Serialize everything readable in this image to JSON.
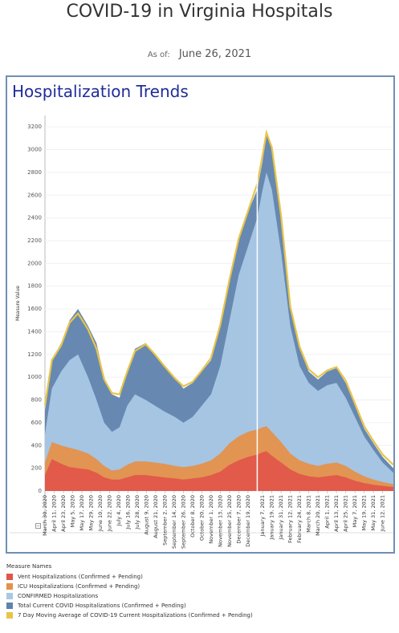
{
  "header": {
    "title": "COVID-19 in Virginia Hospitals",
    "as_of_label": "As of:",
    "as_of_date": "June 26, 2021"
  },
  "panel": {
    "title": "Hospitalization Trends"
  },
  "legend": {
    "title": "Measure Names",
    "items": [
      {
        "label": "Vent Hospitalizations (Confirmed + Pending)",
        "color": "#e0564a"
      },
      {
        "label": "ICU Hospitalizations (Confirmed + Pending)",
        "color": "#e5914a"
      },
      {
        "label": "CONFIRMED Hospitalizations",
        "color": "#a9c8e6"
      },
      {
        "label": "Total Current COVID Hospitalizations (Confirmed + Pending)",
        "color": "#5f83ad"
      },
      {
        "label": "7 Day Moving Average of COVID-19 Current Hospitalizations (Confirmed + Pending)",
        "color": "#e8c54a"
      }
    ]
  },
  "chart_data": {
    "type": "area",
    "ylabel": "Measure Value",
    "xlabel": "",
    "ylim": [
      0,
      3300
    ],
    "yticks": [
      0,
      200,
      400,
      600,
      800,
      1000,
      1200,
      1400,
      1600,
      1800,
      2000,
      2200,
      2400,
      2600,
      2800,
      3000,
      3200
    ],
    "x_start": "2020-03-30",
    "x_end": "2021-06-26",
    "x_ticks": [
      "March 30, 2020",
      "April 11, 2020",
      "April 23, 2020",
      "May 5, 2020",
      "May 17, 2020",
      "May 29, 2020",
      "June 10, 2020",
      "June 22, 2020",
      "July 4, 2020",
      "July 16, 2020",
      "July 28, 2020",
      "August 9, 2020",
      "August 21, 2020",
      "September 2, 2020",
      "September 14, 2020",
      "September 26, 2020",
      "October 8, 2020",
      "October 20, 2020",
      "November 1, 2020",
      "November 13, 2020",
      "November 25, 2020",
      "December 7, 2020",
      "December 19, 2020",
      "January 7, 2021",
      "January 19, 2021",
      "January 31, 2021",
      "February 12, 2021",
      "February 24, 2021",
      "March 8, 2021",
      "March 20, 2021",
      "April 1, 2021",
      "April 13, 2021",
      "April 25, 2021",
      "May 7, 2021",
      "May 19, 2021",
      "May 31, 2021",
      "June 12, 2021"
    ],
    "reference_line_date": "2020-12-31",
    "series": [
      {
        "name": "Total Current COVID Hospitalizations (Confirmed + Pending)",
        "points": [
          [
            "2020-03-30",
            700
          ],
          [
            "2020-04-08",
            1150
          ],
          [
            "2020-04-20",
            1300
          ],
          [
            "2020-05-01",
            1500
          ],
          [
            "2020-05-12",
            1600
          ],
          [
            "2020-05-25",
            1450
          ],
          [
            "2020-06-05",
            1300
          ],
          [
            "2020-06-15",
            1000
          ],
          [
            "2020-06-25",
            850
          ],
          [
            "2020-07-05",
            820
          ],
          [
            "2020-07-15",
            1050
          ],
          [
            "2020-07-25",
            1250
          ],
          [
            "2020-08-08",
            1300
          ],
          [
            "2020-08-20",
            1200
          ],
          [
            "2020-09-01",
            1100
          ],
          [
            "2020-09-15",
            1000
          ],
          [
            "2020-09-26",
            900
          ],
          [
            "2020-10-08",
            950
          ],
          [
            "2020-10-20",
            1050
          ],
          [
            "2020-11-01",
            1150
          ],
          [
            "2020-11-13",
            1450
          ],
          [
            "2020-11-25",
            1850
          ],
          [
            "2020-12-07",
            2200
          ],
          [
            "2020-12-19",
            2450
          ],
          [
            "2020-12-31",
            2650
          ],
          [
            "2021-01-07",
            2900
          ],
          [
            "2021-01-12",
            3150
          ],
          [
            "2021-01-19",
            3000
          ],
          [
            "2021-01-31",
            2400
          ],
          [
            "2021-02-12",
            1600
          ],
          [
            "2021-02-24",
            1250
          ],
          [
            "2021-03-08",
            1050
          ],
          [
            "2021-03-20",
            980
          ],
          [
            "2021-04-01",
            1050
          ],
          [
            "2021-04-13",
            1080
          ],
          [
            "2021-04-25",
            950
          ],
          [
            "2021-05-07",
            750
          ],
          [
            "2021-05-19",
            550
          ],
          [
            "2021-05-31",
            420
          ],
          [
            "2021-06-12",
            300
          ],
          [
            "2021-06-26",
            200
          ]
        ]
      },
      {
        "name": "CONFIRMED Hospitalizations",
        "points": [
          [
            "2020-03-30",
            500
          ],
          [
            "2020-04-08",
            900
          ],
          [
            "2020-04-20",
            1050
          ],
          [
            "2020-05-01",
            1150
          ],
          [
            "2020-05-12",
            1200
          ],
          [
            "2020-05-25",
            1000
          ],
          [
            "2020-06-05",
            800
          ],
          [
            "2020-06-15",
            600
          ],
          [
            "2020-06-25",
            520
          ],
          [
            "2020-07-05",
            560
          ],
          [
            "2020-07-15",
            750
          ],
          [
            "2020-07-25",
            850
          ],
          [
            "2020-08-08",
            800
          ],
          [
            "2020-08-20",
            750
          ],
          [
            "2020-09-01",
            700
          ],
          [
            "2020-09-15",
            650
          ],
          [
            "2020-09-26",
            600
          ],
          [
            "2020-10-08",
            650
          ],
          [
            "2020-10-20",
            750
          ],
          [
            "2020-11-01",
            850
          ],
          [
            "2020-11-13",
            1100
          ],
          [
            "2020-11-25",
            1500
          ],
          [
            "2020-12-07",
            1900
          ],
          [
            "2020-12-19",
            2150
          ],
          [
            "2020-12-31",
            2400
          ],
          [
            "2021-01-07",
            2650
          ],
          [
            "2021-01-12",
            2800
          ],
          [
            "2021-01-19",
            2650
          ],
          [
            "2021-01-31",
            2100
          ],
          [
            "2021-02-12",
            1450
          ],
          [
            "2021-02-24",
            1100
          ],
          [
            "2021-03-08",
            950
          ],
          [
            "2021-03-20",
            880
          ],
          [
            "2021-04-01",
            930
          ],
          [
            "2021-04-13",
            950
          ],
          [
            "2021-04-25",
            820
          ],
          [
            "2021-05-07",
            650
          ],
          [
            "2021-05-19",
            480
          ],
          [
            "2021-05-31",
            360
          ],
          [
            "2021-06-12",
            250
          ],
          [
            "2021-06-26",
            160
          ]
        ]
      },
      {
        "name": "ICU Hospitalizations (Confirmed + Pending)",
        "points": [
          [
            "2020-03-30",
            250
          ],
          [
            "2020-04-08",
            430
          ],
          [
            "2020-04-20",
            400
          ],
          [
            "2020-05-01",
            380
          ],
          [
            "2020-05-12",
            360
          ],
          [
            "2020-05-25",
            330
          ],
          [
            "2020-06-05",
            280
          ],
          [
            "2020-06-15",
            220
          ],
          [
            "2020-06-25",
            180
          ],
          [
            "2020-07-05",
            190
          ],
          [
            "2020-07-15",
            230
          ],
          [
            "2020-07-25",
            260
          ],
          [
            "2020-08-08",
            260
          ],
          [
            "2020-08-20",
            250
          ],
          [
            "2020-09-01",
            240
          ],
          [
            "2020-09-15",
            220
          ],
          [
            "2020-09-26",
            210
          ],
          [
            "2020-10-08",
            220
          ],
          [
            "2020-10-20",
            240
          ],
          [
            "2020-11-01",
            270
          ],
          [
            "2020-11-13",
            330
          ],
          [
            "2020-11-25",
            420
          ],
          [
            "2020-12-07",
            480
          ],
          [
            "2020-12-19",
            520
          ],
          [
            "2020-12-31",
            540
          ],
          [
            "2021-01-07",
            560
          ],
          [
            "2021-01-12",
            570
          ],
          [
            "2021-01-19",
            520
          ],
          [
            "2021-01-31",
            430
          ],
          [
            "2021-02-12",
            330
          ],
          [
            "2021-02-24",
            270
          ],
          [
            "2021-03-08",
            240
          ],
          [
            "2021-03-20",
            220
          ],
          [
            "2021-04-01",
            240
          ],
          [
            "2021-04-13",
            250
          ],
          [
            "2021-04-25",
            220
          ],
          [
            "2021-05-07",
            170
          ],
          [
            "2021-05-19",
            130
          ],
          [
            "2021-05-31",
            100
          ],
          [
            "2021-06-12",
            80
          ],
          [
            "2021-06-26",
            60
          ]
        ]
      },
      {
        "name": "Vent Hospitalizations (Confirmed + Pending)",
        "points": [
          [
            "2020-03-30",
            140
          ],
          [
            "2020-04-08",
            280
          ],
          [
            "2020-04-20",
            240
          ],
          [
            "2020-05-01",
            210
          ],
          [
            "2020-05-12",
            200
          ],
          [
            "2020-05-25",
            190
          ],
          [
            "2020-06-05",
            160
          ],
          [
            "2020-06-15",
            120
          ],
          [
            "2020-06-25",
            100
          ],
          [
            "2020-07-05",
            100
          ],
          [
            "2020-07-15",
            120
          ],
          [
            "2020-07-25",
            140
          ],
          [
            "2020-08-08",
            140
          ],
          [
            "2020-08-20",
            130
          ],
          [
            "2020-09-01",
            120
          ],
          [
            "2020-09-15",
            110
          ],
          [
            "2020-09-26",
            100
          ],
          [
            "2020-10-08",
            110
          ],
          [
            "2020-10-20",
            120
          ],
          [
            "2020-11-01",
            140
          ],
          [
            "2020-11-13",
            170
          ],
          [
            "2020-11-25",
            230
          ],
          [
            "2020-12-07",
            270
          ],
          [
            "2020-12-19",
            300
          ],
          [
            "2020-12-31",
            320
          ],
          [
            "2021-01-07",
            340
          ],
          [
            "2021-01-12",
            350
          ],
          [
            "2021-01-19",
            310
          ],
          [
            "2021-01-31",
            250
          ],
          [
            "2021-02-12",
            190
          ],
          [
            "2021-02-24",
            150
          ],
          [
            "2021-03-08",
            130
          ],
          [
            "2021-03-20",
            120
          ],
          [
            "2021-04-01",
            130
          ],
          [
            "2021-04-13",
            140
          ],
          [
            "2021-04-25",
            120
          ],
          [
            "2021-05-07",
            90
          ],
          [
            "2021-05-19",
            70
          ],
          [
            "2021-05-31",
            55
          ],
          [
            "2021-06-12",
            45
          ],
          [
            "2021-06-26",
            35
          ]
        ]
      },
      {
        "name": "7 Day Moving Average of COVID-19 Current Hospitalizations (Confirmed + Pending)",
        "points": [
          [
            "2020-03-30",
            750
          ],
          [
            "2020-04-08",
            1150
          ],
          [
            "2020-04-20",
            1280
          ],
          [
            "2020-05-01",
            1480
          ],
          [
            "2020-05-12",
            1560
          ],
          [
            "2020-05-25",
            1420
          ],
          [
            "2020-06-05",
            1250
          ],
          [
            "2020-06-15",
            980
          ],
          [
            "2020-06-25",
            860
          ],
          [
            "2020-07-05",
            850
          ],
          [
            "2020-07-15",
            1050
          ],
          [
            "2020-07-25",
            1230
          ],
          [
            "2020-08-08",
            1290
          ],
          [
            "2020-08-20",
            1200
          ],
          [
            "2020-09-01",
            1100
          ],
          [
            "2020-09-15",
            990
          ],
          [
            "2020-09-26",
            920
          ],
          [
            "2020-10-08",
            960
          ],
          [
            "2020-10-20",
            1060
          ],
          [
            "2020-11-01",
            1170
          ],
          [
            "2020-11-13",
            1460
          ],
          [
            "2020-11-25",
            1860
          ],
          [
            "2020-12-07",
            2220
          ],
          [
            "2020-12-19",
            2460
          ],
          [
            "2020-12-31",
            2700
          ],
          [
            "2021-01-07",
            2950
          ],
          [
            "2021-01-12",
            3150
          ],
          [
            "2021-01-19",
            3020
          ],
          [
            "2021-01-31",
            2420
          ],
          [
            "2021-02-12",
            1620
          ],
          [
            "2021-02-24",
            1270
          ],
          [
            "2021-03-08",
            1070
          ],
          [
            "2021-03-20",
            1000
          ],
          [
            "2021-04-01",
            1060
          ],
          [
            "2021-04-13",
            1090
          ],
          [
            "2021-04-25",
            970
          ],
          [
            "2021-05-07",
            770
          ],
          [
            "2021-05-19",
            570
          ],
          [
            "2021-05-31",
            440
          ],
          [
            "2021-06-12",
            320
          ],
          [
            "2021-06-26",
            230
          ]
        ]
      }
    ]
  }
}
